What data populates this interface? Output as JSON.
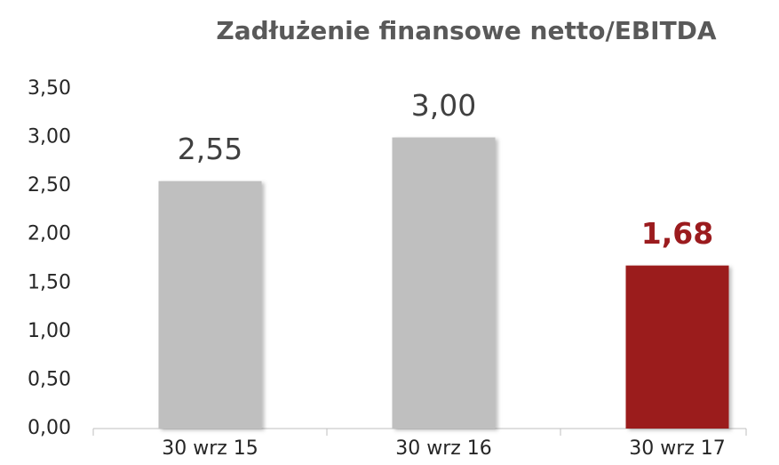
{
  "chart_data": {
    "type": "bar",
    "title": "Zadłużenie finansowe netto/EBITDA",
    "categories": [
      "30 wrz 15",
      "30 wrz 16",
      "30 wrz 17"
    ],
    "values": [
      2.55,
      3.0,
      1.68
    ],
    "value_labels": [
      "2,55",
      "3,00",
      "1,68"
    ],
    "colors": [
      "#bfbfbf",
      "#bfbfbf",
      "#9b1b1e"
    ],
    "value_label_colors": [
      "#404040",
      "#404040",
      "#9b1b1e"
    ],
    "ylim": [
      0,
      3.5
    ],
    "yticks": [
      {
        "value": 0,
        "label": "0,00"
      },
      {
        "value": 0.5,
        "label": "0,50"
      },
      {
        "value": 1,
        "label": "1,00"
      },
      {
        "value": 1.5,
        "label": "1,50"
      },
      {
        "value": 2,
        "label": "2,00"
      },
      {
        "value": 2.5,
        "label": "2,50"
      },
      {
        "value": 3,
        "label": "3,00"
      },
      {
        "value": 3.5,
        "label": "3,50"
      }
    ],
    "grid": false
  }
}
